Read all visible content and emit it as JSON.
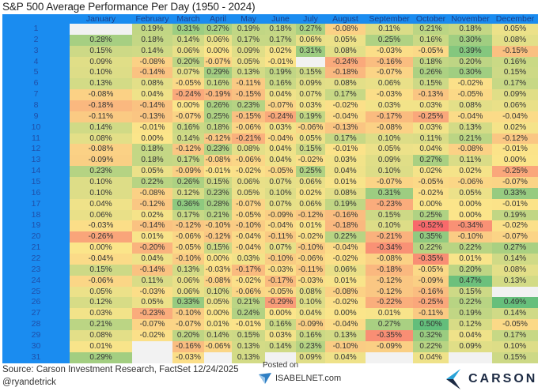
{
  "chart_data": {
    "type": "heatmap",
    "title": "S&P 500 Average Performance Per Day (1950 - 2024)",
    "columns": [
      "January",
      "February",
      "March",
      "April",
      "May",
      "June",
      "July",
      "August",
      "September",
      "October",
      "November",
      "December"
    ],
    "row_labels": [
      "1",
      "2",
      "3",
      "4",
      "5",
      "6",
      "7",
      "8",
      "9",
      "10",
      "11",
      "12",
      "13",
      "14",
      "15",
      "16",
      "17",
      "18",
      "19",
      "20",
      "21",
      "22",
      "23",
      "24",
      "25",
      "26",
      "27",
      "28",
      "29",
      "30",
      "31"
    ],
    "unit": "%",
    "color_scale": {
      "negative": "#f8696b",
      "zero": "#fbe58a",
      "positive": "#63be7b",
      "blank": "#f2f2f2",
      "range": [
        -0.5,
        0.5
      ]
    },
    "values": [
      [
        null,
        0.19,
        0.31,
        0.27,
        0.19,
        0.18,
        0.27,
        -0.08,
        0.11,
        0.21,
        0.18,
        0.05
      ],
      [
        0.28,
        0.18,
        0.14,
        0.06,
        0.17,
        0.17,
        0.06,
        0.05,
        0.25,
        0.16,
        0.3,
        0.08
      ],
      [
        0.15,
        0.14,
        0.06,
        0.0,
        0.09,
        0.02,
        0.31,
        0.08,
        -0.03,
        -0.05,
        0.39,
        -0.15
      ],
      [
        0.09,
        -0.08,
        0.2,
        -0.07,
        0.05,
        -0.01,
        null,
        -0.24,
        -0.16,
        0.18,
        0.2,
        0.16
      ],
      [
        0.1,
        -0.14,
        0.07,
        0.29,
        0.13,
        0.19,
        0.15,
        -0.18,
        -0.07,
        0.26,
        0.3,
        0.15
      ],
      [
        0.13,
        0.08,
        -0.05,
        0.16,
        -0.11,
        0.16,
        0.09,
        0.08,
        0.06,
        0.15,
        -0.02,
        0.17
      ],
      [
        -0.08,
        0.04,
        -0.24,
        -0.19,
        -0.15,
        0.04,
        0.07,
        0.17,
        -0.03,
        -0.13,
        -0.05,
        0.09
      ],
      [
        -0.18,
        -0.14,
        0.0,
        0.26,
        0.23,
        -0.07,
        0.03,
        -0.02,
        0.03,
        0.03,
        0.08,
        0.06
      ],
      [
        -0.11,
        -0.13,
        -0.07,
        0.25,
        -0.15,
        -0.24,
        0.19,
        -0.04,
        -0.17,
        -0.25,
        -0.04,
        -0.04
      ],
      [
        0.14,
        -0.01,
        0.16,
        0.18,
        -0.06,
        0.03,
        -0.06,
        -0.13,
        -0.08,
        0.03,
        0.13,
        0.02
      ],
      [
        0.08,
        0.0,
        0.14,
        -0.12,
        -0.21,
        -0.04,
        0.05,
        0.17,
        0.1,
        0.11,
        0.21,
        -0.12
      ],
      [
        -0.08,
        0.18,
        -0.12,
        0.23,
        0.08,
        0.04,
        0.15,
        -0.01,
        0.05,
        0.04,
        -0.08,
        -0.01
      ],
      [
        -0.09,
        0.18,
        0.17,
        -0.08,
        -0.06,
        0.04,
        -0.02,
        0.03,
        0.09,
        0.27,
        0.11,
        0.0
      ],
      [
        0.23,
        0.05,
        -0.09,
        -0.01,
        -0.02,
        -0.05,
        0.25,
        0.04,
        0.1,
        0.02,
        0.02,
        -0.25
      ],
      [
        0.1,
        0.22,
        0.26,
        0.15,
        0.06,
        0.07,
        0.06,
        0.01,
        -0.07,
        -0.05,
        -0.06,
        -0.07
      ],
      [
        0.1,
        -0.08,
        0.12,
        0.23,
        0.05,
        0.1,
        0.02,
        0.08,
        0.31,
        -0.02,
        0.05,
        0.33
      ],
      [
        0.04,
        -0.12,
        0.36,
        0.28,
        -0.07,
        0.07,
        0.06,
        0.19,
        -0.23,
        0.0,
        0.0,
        -0.01
      ],
      [
        0.06,
        0.02,
        0.17,
        0.21,
        -0.05,
        -0.09,
        -0.12,
        -0.16,
        0.15,
        0.25,
        0.0,
        0.19
      ],
      [
        -0.03,
        -0.14,
        -0.12,
        -0.1,
        -0.1,
        -0.04,
        0.01,
        -0.18,
        0.1,
        -0.52,
        -0.34,
        -0.02
      ],
      [
        -0.26,
        0.01,
        -0.06,
        -0.12,
        -0.04,
        -0.11,
        -0.02,
        0.22,
        -0.21,
        0.35,
        -0.1,
        -0.07
      ],
      [
        0.0,
        -0.2,
        -0.05,
        0.15,
        -0.04,
        0.07,
        -0.1,
        -0.04,
        -0.34,
        0.22,
        0.22,
        0.27
      ],
      [
        -0.04,
        0.04,
        -0.1,
        0.0,
        0.03,
        -0.1,
        -0.06,
        -0.02,
        -0.08,
        -0.35,
        0.01,
        0.14
      ],
      [
        0.15,
        -0.14,
        0.13,
        -0.03,
        -0.17,
        -0.03,
        -0.11,
        0.06,
        -0.18,
        -0.05,
        0.2,
        0.08
      ],
      [
        -0.06,
        0.11,
        0.06,
        -0.08,
        -0.02,
        -0.17,
        -0.03,
        0.01,
        -0.12,
        -0.09,
        0.47,
        0.13
      ],
      [
        0.05,
        -0.03,
        0.06,
        0.1,
        -0.06,
        -0.05,
        0.08,
        -0.08,
        -0.12,
        -0.16,
        0.15,
        null
      ],
      [
        0.12,
        0.05,
        0.33,
        0.05,
        0.21,
        -0.29,
        0.1,
        -0.02,
        -0.22,
        -0.25,
        0.22,
        0.49
      ],
      [
        0.03,
        -0.23,
        -0.1,
        0.0,
        0.24,
        0.0,
        0.04,
        0.0,
        0.01,
        -0.11,
        0.19,
        0.14
      ],
      [
        0.21,
        -0.07,
        -0.07,
        0.01,
        -0.01,
        0.16,
        -0.09,
        -0.04,
        0.27,
        0.5,
        0.12,
        -0.05
      ],
      [
        0.08,
        -0.02,
        0.2,
        0.14,
        0.15,
        0.03,
        0.16,
        0.13,
        -0.35,
        0.32,
        0.04,
        0.17
      ],
      [
        0.01,
        null,
        -0.16,
        -0.06,
        0.13,
        0.14,
        0.23,
        -0.1,
        -0.09,
        0.22,
        0.09,
        0.1
      ],
      [
        0.29,
        null,
        -0.03,
        null,
        0.13,
        null,
        0.09,
        0.04,
        null,
        0.04,
        null,
        0.15
      ]
    ]
  },
  "footer": {
    "source": "Source: Carson Investment Research, FactSet 12/24/2025",
    "handle": "@ryandetrick",
    "posted_on": "Posted on",
    "isabelnet": "ISABELNET.com",
    "carson": "CARSON"
  },
  "header_color": "#1a8cf0"
}
